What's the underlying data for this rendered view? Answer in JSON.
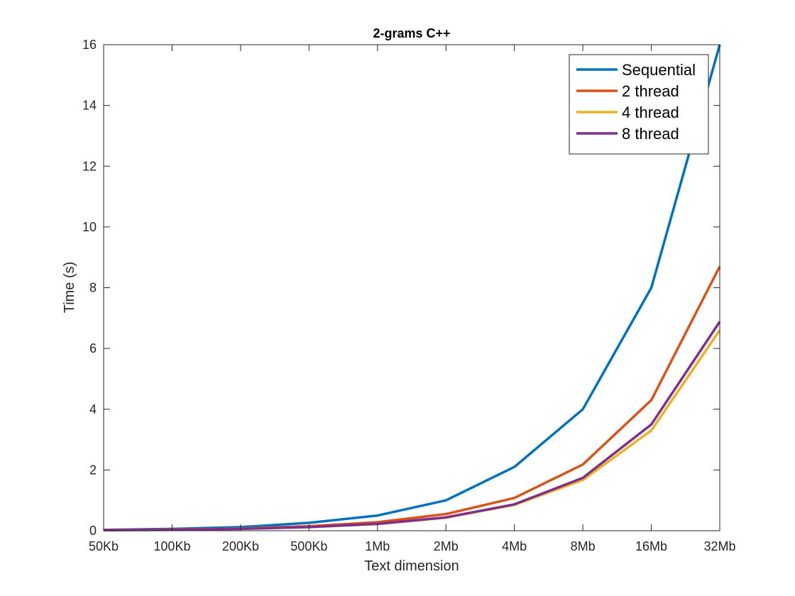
{
  "chart_data": {
    "type": "line",
    "title": "2-grams C++",
    "xlabel": "Text dimension",
    "ylabel": "Time (s)",
    "categories": [
      "50Kb",
      "100Kb",
      "200Kb",
      "500Kb",
      "1Mb",
      "2Mb",
      "4Mb",
      "8Mb",
      "16Mb",
      "32Mb"
    ],
    "ylim": [
      0,
      16
    ],
    "yticks": [
      0,
      2,
      4,
      6,
      8,
      10,
      12,
      14,
      16
    ],
    "grid": false,
    "legend_position": "top-right",
    "series": [
      {
        "name": "Sequential",
        "color": "#0072BD",
        "values": [
          0.03,
          0.06,
          0.12,
          0.26,
          0.5,
          1.0,
          2.1,
          4.0,
          8.0,
          16.0
        ]
      },
      {
        "name": "2 thread",
        "color": "#D95319",
        "values": [
          0.02,
          0.04,
          0.07,
          0.15,
          0.28,
          0.55,
          1.08,
          2.18,
          4.3,
          8.7
        ]
      },
      {
        "name": "4 thread",
        "color": "#EDB120",
        "values": [
          0.02,
          0.03,
          0.06,
          0.12,
          0.22,
          0.43,
          0.85,
          1.67,
          3.3,
          6.6
        ]
      },
      {
        "name": "8 thread",
        "color": "#7E2F8E",
        "values": [
          0.02,
          0.03,
          0.06,
          0.12,
          0.23,
          0.44,
          0.87,
          1.74,
          3.5,
          6.88
        ]
      }
    ]
  }
}
